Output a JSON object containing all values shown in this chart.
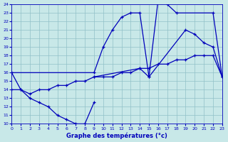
{
  "title": "Graphe des températures (°c)",
  "bg_color": "#c8e8e8",
  "grid_color": "#90c0c8",
  "line_color": "#0000bb",
  "xlim": [
    0,
    23
  ],
  "ylim": [
    10,
    24
  ],
  "xticks": [
    0,
    1,
    2,
    3,
    4,
    5,
    6,
    7,
    8,
    9,
    10,
    11,
    12,
    13,
    14,
    15,
    16,
    17,
    18,
    19,
    20,
    21,
    22,
    23
  ],
  "yticks": [
    10,
    11,
    12,
    13,
    14,
    15,
    16,
    17,
    18,
    19,
    20,
    21,
    22,
    23,
    24
  ],
  "series": [
    {
      "x": [
        0,
        1,
        2,
        3,
        4,
        5,
        6,
        7,
        8,
        9
      ],
      "y": [
        16,
        14,
        13,
        12.5,
        12,
        11,
        10.5,
        10,
        10,
        12.5
      ]
    },
    {
      "x": [
        0,
        1,
        2,
        3,
        4,
        5,
        6,
        7,
        8,
        9,
        10,
        11,
        12,
        13,
        14,
        15,
        16,
        17,
        18,
        19,
        20,
        21,
        22,
        23
      ],
      "y": [
        14,
        14,
        13.5,
        14,
        14,
        14.5,
        14.5,
        15,
        15,
        15.5,
        15.5,
        15.5,
        16,
        16,
        16.5,
        16.5,
        17,
        17,
        17.5,
        17.5,
        18,
        18,
        18,
        15.5
      ]
    },
    {
      "x": [
        0,
        9,
        10,
        11,
        12,
        13,
        14,
        15,
        16,
        17,
        18,
        22,
        23
      ],
      "y": [
        16,
        16,
        19,
        21,
        22.5,
        23,
        23,
        15.5,
        24.5,
        24,
        23,
        23,
        15.5
      ]
    },
    {
      "x": [
        9,
        14,
        15,
        19,
        20,
        21,
        22,
        23
      ],
      "y": [
        15.5,
        16.5,
        15.5,
        21,
        20.5,
        19.5,
        19,
        15.5
      ]
    }
  ]
}
